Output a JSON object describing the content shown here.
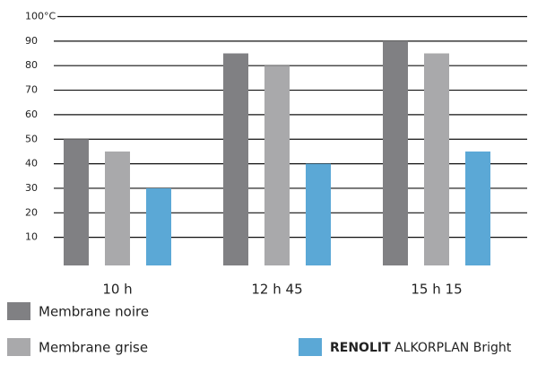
{
  "chart_data": {
    "type": "bar",
    "categories": [
      "10 h",
      "12 h 45",
      "15 h 15"
    ],
    "series": [
      {
        "name": "Membrane noire",
        "color": "#808083",
        "values": [
          50,
          85,
          90
        ]
      },
      {
        "name": "Membrane grise",
        "color": "#a9a9ab",
        "values": [
          45,
          80,
          85
        ]
      },
      {
        "name": "RENOLIT ALKORPLAN Bright",
        "color": "#5ba8d6",
        "values": [
          30,
          40,
          45
        ]
      }
    ],
    "ylim": [
      0,
      100
    ],
    "yticks": [
      10,
      20,
      30,
      40,
      50,
      60,
      70,
      80,
      90,
      {
        "value": 100,
        "label": "100°C"
      }
    ],
    "grid": true
  }
}
